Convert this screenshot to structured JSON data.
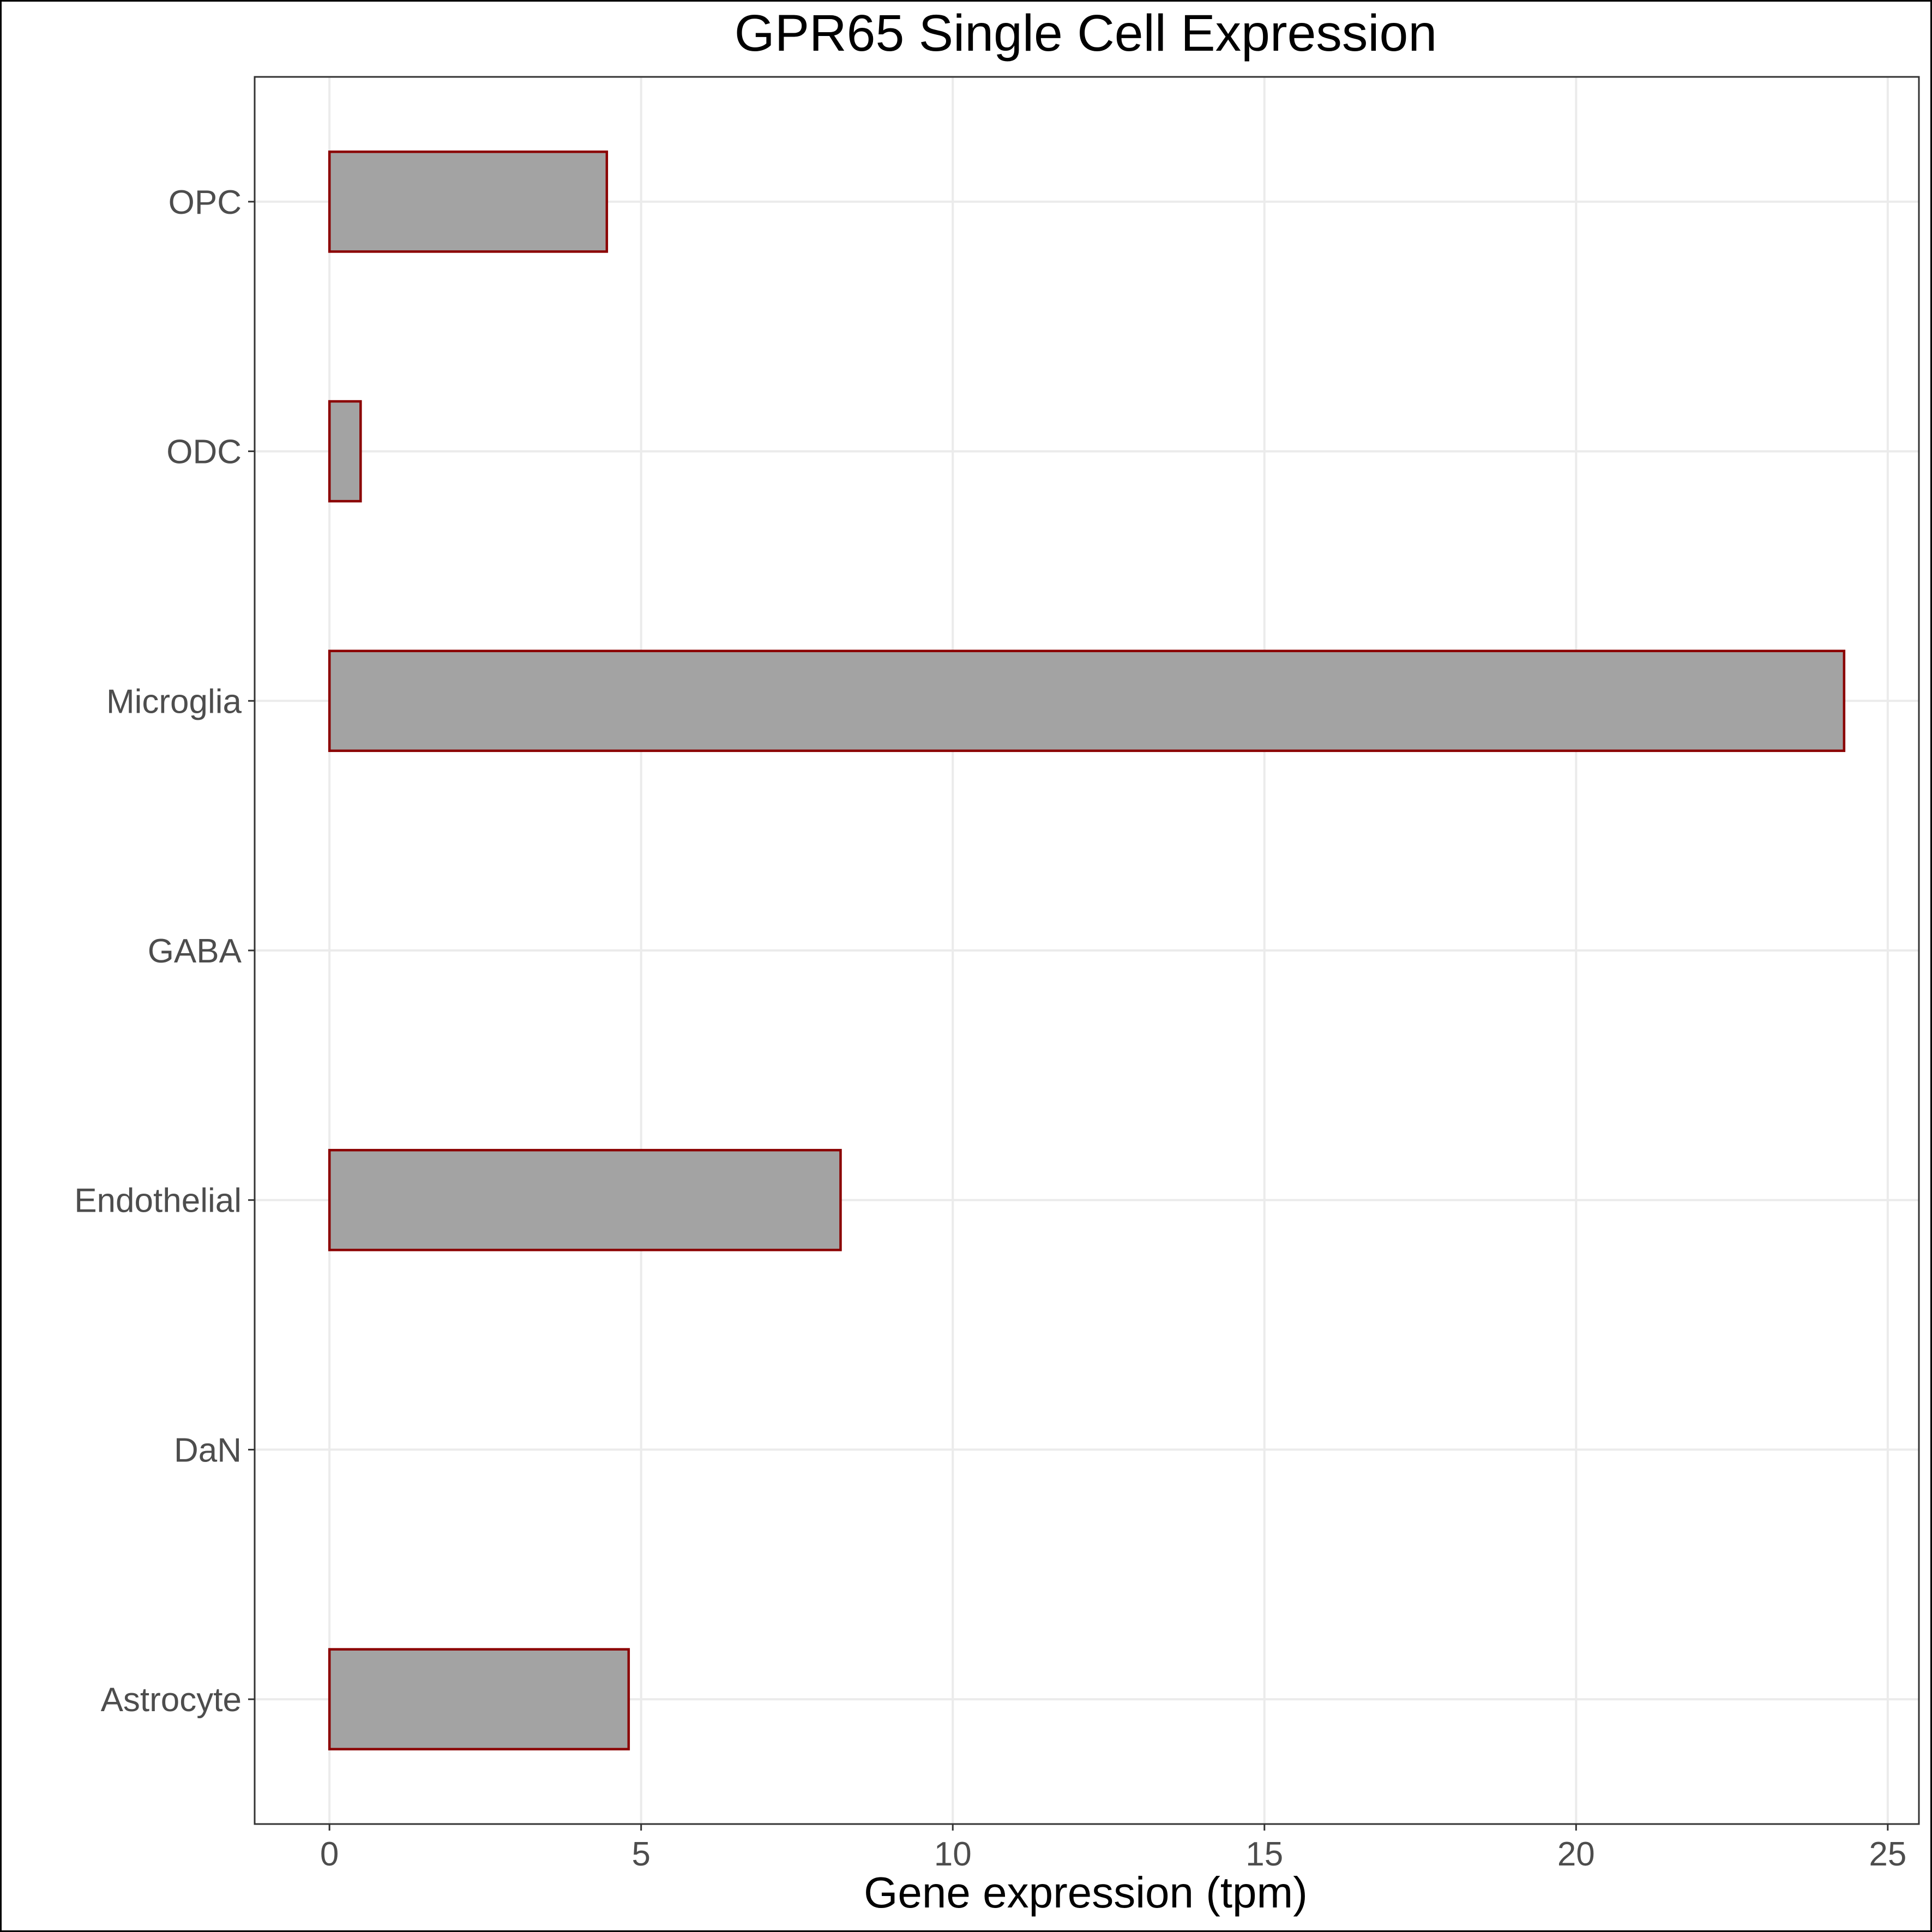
{
  "chart_data": {
    "type": "bar",
    "orientation": "horizontal",
    "title": "GPR65 Single Cell Expression",
    "xlabel": "Gene expression (tpm)",
    "ylabel": "",
    "categories": [
      "Astrocyte",
      "DaN",
      "Endothelial",
      "GABA",
      "Microglia",
      "ODC",
      "OPC"
    ],
    "values": [
      4.8,
      0.0,
      8.2,
      0.0,
      24.3,
      0.5,
      4.45
    ],
    "xlim": [
      -1.2,
      25.5
    ],
    "xticks": [
      0,
      5,
      10,
      15,
      20,
      25
    ],
    "xtick_labels": [
      "0",
      "5",
      "10",
      "15",
      "20",
      "25"
    ],
    "grid": true,
    "bar_fill": "#a3a3a3",
    "bar_outline": "#8b0000",
    "legend": "none"
  }
}
